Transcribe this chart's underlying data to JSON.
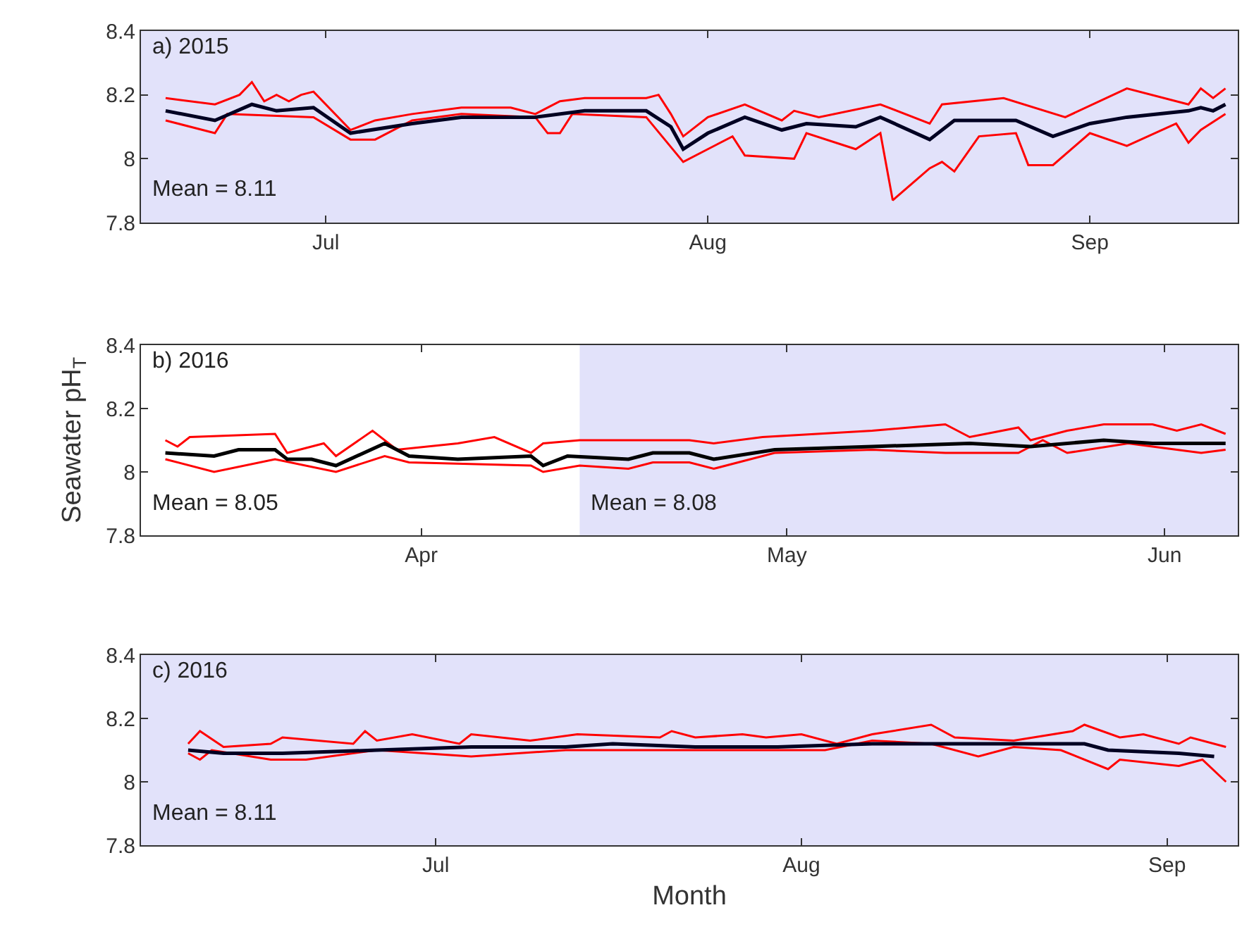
{
  "chart_data": [
    {
      "type": "line",
      "xlim": [
        "2015-06-16",
        "2015-09-13"
      ],
      "ylim": [
        7.8,
        8.4
      ],
      "yticks": [
        7.8,
        8,
        8.2,
        8.4
      ],
      "grid": false,
      "line_style": "solid",
      "marker": "none",
      "xticks": [
        {
          "value": "2015-07-01",
          "label": "Jul"
        },
        {
          "value": "2015-08-01",
          "label": "Aug"
        },
        {
          "value": "2015-09-01",
          "label": "Sep"
        }
      ],
      "bands": [
        {
          "axis": "x",
          "from": "2015-06-16",
          "to": "2015-09-13",
          "color": "#e2e2fa"
        }
      ],
      "annotations": [
        "a) 2015",
        "Mean = 8.11"
      ],
      "series": [
        {
          "color": "#ff0000",
          "x": [
            "2015-06-18",
            "2015-06-22",
            "2015-06-24",
            "2015-06-25",
            "2015-06-26",
            "2015-06-27",
            "2015-06-28",
            "2015-06-29",
            "2015-06-30",
            "2015-07-03",
            "2015-07-05",
            "2015-07-08",
            "2015-07-12",
            "2015-07-16",
            "2015-07-18",
            "2015-07-20",
            "2015-07-22",
            "2015-07-27",
            "2015-07-28",
            "2015-07-29",
            "2015-07-30",
            "2015-08-01",
            "2015-08-04",
            "2015-08-07",
            "2015-08-08",
            "2015-08-10",
            "2015-08-15",
            "2015-08-19",
            "2015-08-20",
            "2015-08-25",
            "2015-08-30",
            "2015-09-04",
            "2015-09-09",
            "2015-09-10",
            "2015-09-11",
            "2015-09-12"
          ],
          "values": [
            8.19,
            8.17,
            8.2,
            8.24,
            8.18,
            8.2,
            8.18,
            8.2,
            8.21,
            8.09,
            8.12,
            8.14,
            8.16,
            8.16,
            8.14,
            8.18,
            8.19,
            8.19,
            8.2,
            8.14,
            8.07,
            8.13,
            8.17,
            8.12,
            8.15,
            8.13,
            8.17,
            8.11,
            8.17,
            8.19,
            8.13,
            8.22,
            8.17,
            8.22,
            8.19,
            8.22
          ]
        },
        {
          "color": "#ff0000",
          "x": [
            "2015-06-18",
            "2015-06-22",
            "2015-06-23",
            "2015-06-30",
            "2015-07-03",
            "2015-07-05",
            "2015-07-08",
            "2015-07-12",
            "2015-07-18",
            "2015-07-19",
            "2015-07-20",
            "2015-07-21",
            "2015-07-27",
            "2015-07-30",
            "2015-08-01",
            "2015-08-03",
            "2015-08-04",
            "2015-08-08",
            "2015-08-09",
            "2015-08-13",
            "2015-08-15",
            "2015-08-16",
            "2015-08-19",
            "2015-08-20",
            "2015-08-21",
            "2015-08-23",
            "2015-08-26",
            "2015-08-27",
            "2015-08-29",
            "2015-09-01",
            "2015-09-04",
            "2015-09-08",
            "2015-09-09",
            "2015-09-10",
            "2015-09-12"
          ],
          "values": [
            8.12,
            8.08,
            8.14,
            8.13,
            8.06,
            8.06,
            8.12,
            8.14,
            8.13,
            8.08,
            8.08,
            8.14,
            8.13,
            7.99,
            8.03,
            8.07,
            8.01,
            8.0,
            8.08,
            8.03,
            8.08,
            7.87,
            7.97,
            7.99,
            7.96,
            8.07,
            8.08,
            7.98,
            7.98,
            8.08,
            8.04,
            8.11,
            8.05,
            8.09,
            8.14
          ]
        },
        {
          "color": "#000022",
          "x": [
            "2015-06-18",
            "2015-06-22",
            "2015-06-25",
            "2015-06-27",
            "2015-06-30",
            "2015-07-03",
            "2015-07-08",
            "2015-07-12",
            "2015-07-18",
            "2015-07-22",
            "2015-07-27",
            "2015-07-29",
            "2015-07-30",
            "2015-08-01",
            "2015-08-04",
            "2015-08-07",
            "2015-08-09",
            "2015-08-13",
            "2015-08-15",
            "2015-08-19",
            "2015-08-21",
            "2015-08-24",
            "2015-08-26",
            "2015-08-29",
            "2015-09-01",
            "2015-09-04",
            "2015-09-09",
            "2015-09-10",
            "2015-09-11",
            "2015-09-12"
          ],
          "values": [
            8.15,
            8.12,
            8.17,
            8.15,
            8.16,
            8.08,
            8.11,
            8.13,
            8.13,
            8.15,
            8.15,
            8.1,
            8.03,
            8.08,
            8.13,
            8.09,
            8.11,
            8.1,
            8.13,
            8.06,
            8.12,
            8.12,
            8.12,
            8.07,
            8.11,
            8.13,
            8.15,
            8.16,
            8.15,
            8.17
          ]
        }
      ]
    },
    {
      "type": "line",
      "xlim": [
        "2016-03-09",
        "2016-06-07"
      ],
      "ylim": [
        7.8,
        8.4
      ],
      "yticks": [
        7.8,
        8,
        8.2,
        8.4
      ],
      "grid": false,
      "line_style": "solid",
      "marker": "none",
      "ylabel": "Seawater pH$_{T}$",
      "xticks": [
        {
          "value": "2016-04-01",
          "label": "Apr"
        },
        {
          "value": "2016-05-01",
          "label": "May"
        },
        {
          "value": "2016-06-01",
          "label": "Jun"
        }
      ],
      "bands": [
        {
          "axis": "x",
          "from": "2016-04-14",
          "to": "2016-06-07",
          "color": "#e2e2fa"
        }
      ],
      "annotations": [
        "b) 2016",
        "Mean = 8.05",
        "Mean = 8.08"
      ],
      "series": [
        {
          "color": "#ff0000",
          "x": [
            "2016-03-11",
            "2016-03-12",
            "2016-03-13",
            "2016-03-20",
            "2016-03-21",
            "2016-03-24",
            "2016-03-25",
            "2016-03-28",
            "2016-03-30",
            "2016-04-04",
            "2016-04-07",
            "2016-04-10",
            "2016-04-11",
            "2016-04-14",
            "2016-04-23",
            "2016-04-25",
            "2016-04-29",
            "2016-05-08",
            "2016-05-14",
            "2016-05-16",
            "2016-05-20",
            "2016-05-21",
            "2016-05-24",
            "2016-05-27",
            "2016-05-31",
            "2016-06-02",
            "2016-06-04",
            "2016-06-06"
          ],
          "values": [
            8.1,
            8.08,
            8.11,
            8.12,
            8.06,
            8.09,
            8.05,
            8.13,
            8.07,
            8.09,
            8.11,
            8.06,
            8.09,
            8.1,
            8.1,
            8.09,
            8.11,
            8.13,
            8.15,
            8.11,
            8.14,
            8.1,
            8.13,
            8.15,
            8.15,
            8.13,
            8.15,
            8.12
          ]
        },
        {
          "color": "#ff0000",
          "x": [
            "2016-03-11",
            "2016-03-15",
            "2016-03-20",
            "2016-03-25",
            "2016-03-29",
            "2016-03-31",
            "2016-04-10",
            "2016-04-11",
            "2016-04-14",
            "2016-04-18",
            "2016-04-20",
            "2016-04-23",
            "2016-04-25",
            "2016-04-30",
            "2016-05-08",
            "2016-05-14",
            "2016-05-20",
            "2016-05-22",
            "2016-05-24",
            "2016-05-29",
            "2016-05-31",
            "2016-06-04",
            "2016-06-06"
          ],
          "values": [
            8.04,
            8.0,
            8.04,
            8.0,
            8.05,
            8.03,
            8.02,
            8.0,
            8.02,
            8.01,
            8.03,
            8.03,
            8.01,
            8.06,
            8.07,
            8.06,
            8.06,
            8.1,
            8.06,
            8.09,
            8.08,
            8.06,
            8.07
          ]
        },
        {
          "color": "#000000",
          "x": [
            "2016-03-11",
            "2016-03-15",
            "2016-03-17",
            "2016-03-20",
            "2016-03-21",
            "2016-03-23",
            "2016-03-25",
            "2016-03-29",
            "2016-03-31",
            "2016-04-04",
            "2016-04-10",
            "2016-04-11",
            "2016-04-13",
            "2016-04-18",
            "2016-04-20",
            "2016-04-23",
            "2016-04-25",
            "2016-04-30",
            "2016-05-08",
            "2016-05-16",
            "2016-05-21",
            "2016-05-27",
            "2016-05-31",
            "2016-06-06"
          ],
          "values": [
            8.06,
            8.05,
            8.07,
            8.07,
            8.04,
            8.04,
            8.02,
            8.09,
            8.05,
            8.04,
            8.05,
            8.02,
            8.05,
            8.04,
            8.06,
            8.06,
            8.04,
            8.07,
            8.08,
            8.09,
            8.08,
            8.1,
            8.09,
            8.09
          ]
        }
      ]
    },
    {
      "type": "line",
      "xlim": [
        "2016-06-06",
        "2016-09-07"
      ],
      "ylim": [
        7.8,
        8.4
      ],
      "yticks": [
        7.8,
        8,
        8.2,
        8.4
      ],
      "grid": false,
      "line_style": "solid",
      "marker": "none",
      "xlabel": "Month",
      "xticks": [
        {
          "value": "2016-07-01",
          "label": "Jul"
        },
        {
          "value": "2016-08-01",
          "label": "Aug"
        },
        {
          "value": "2016-09-01",
          "label": "Sep"
        }
      ],
      "bands": [
        {
          "axis": "x",
          "from": "2016-06-06",
          "to": "2016-09-07",
          "color": "#e2e2fa"
        }
      ],
      "annotations": [
        "c) 2016",
        "Mean = 8.11"
      ],
      "series": [
        {
          "color": "#ff0000",
          "x": [
            "2016-06-10",
            "2016-06-11",
            "2016-06-13",
            "2016-06-17",
            "2016-06-18",
            "2016-06-24",
            "2016-06-25",
            "2016-06-26",
            "2016-06-29",
            "2016-07-03",
            "2016-07-04",
            "2016-07-09",
            "2016-07-13",
            "2016-07-20",
            "2016-07-21",
            "2016-07-23",
            "2016-07-27",
            "2016-07-29",
            "2016-08-01",
            "2016-08-04",
            "2016-08-07",
            "2016-08-12",
            "2016-08-14",
            "2016-08-19",
            "2016-08-24",
            "2016-08-25",
            "2016-08-28",
            "2016-08-30",
            "2016-09-02",
            "2016-09-03",
            "2016-09-06"
          ],
          "values": [
            8.12,
            8.16,
            8.11,
            8.12,
            8.14,
            8.12,
            8.16,
            8.13,
            8.15,
            8.12,
            8.15,
            8.13,
            8.15,
            8.14,
            8.16,
            8.14,
            8.15,
            8.14,
            8.15,
            8.12,
            8.15,
            8.18,
            8.14,
            8.13,
            8.16,
            8.18,
            8.14,
            8.15,
            8.12,
            8.14,
            8.11
          ]
        },
        {
          "color": "#ff0000",
          "x": [
            "2016-06-10",
            "2016-06-11",
            "2016-06-12",
            "2016-06-17",
            "2016-06-20",
            "2016-06-26",
            "2016-07-04",
            "2016-07-12",
            "2016-07-23",
            "2016-07-30",
            "2016-08-03",
            "2016-08-07",
            "2016-08-12",
            "2016-08-16",
            "2016-08-19",
            "2016-08-23",
            "2016-08-27",
            "2016-08-28",
            "2016-09-02",
            "2016-09-04",
            "2016-09-06"
          ],
          "values": [
            8.09,
            8.07,
            8.1,
            8.07,
            8.07,
            8.1,
            8.08,
            8.1,
            8.1,
            8.1,
            8.1,
            8.13,
            8.12,
            8.08,
            8.11,
            8.1,
            8.04,
            8.07,
            8.05,
            8.07,
            8.0
          ]
        },
        {
          "color": "#000022",
          "x": [
            "2016-06-10",
            "2016-06-13",
            "2016-06-18",
            "2016-06-26",
            "2016-07-04",
            "2016-07-12",
            "2016-07-16",
            "2016-07-23",
            "2016-07-30",
            "2016-08-07",
            "2016-08-15",
            "2016-08-23",
            "2016-08-25",
            "2016-08-27",
            "2016-09-02",
            "2016-09-05"
          ],
          "values": [
            8.1,
            8.09,
            8.09,
            8.1,
            8.11,
            8.11,
            8.12,
            8.11,
            8.11,
            8.12,
            8.12,
            8.12,
            8.12,
            8.1,
            8.09,
            8.08
          ]
        }
      ]
    }
  ]
}
